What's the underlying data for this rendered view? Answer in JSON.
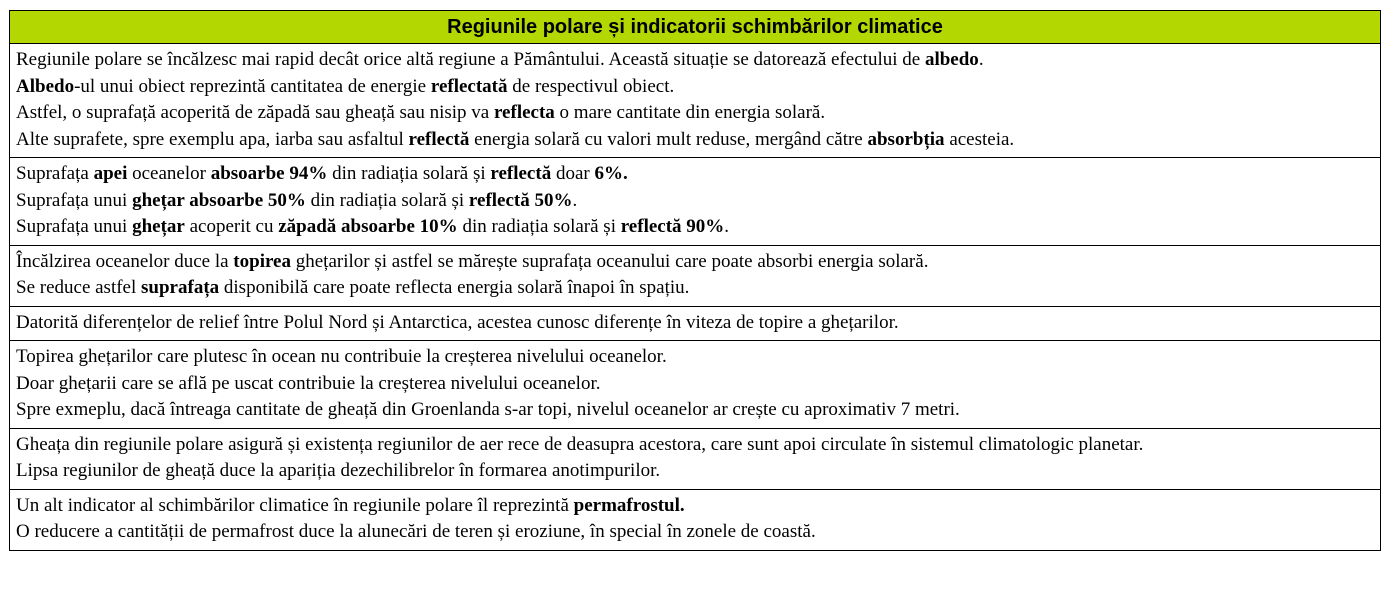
{
  "colors": {
    "header_background": "#b3d700",
    "border": "#000000",
    "text": "#000000"
  },
  "title": "Regiunile polare și indicatorii schimbărilor climatice",
  "rows": [
    {
      "lines": [
        [
          {
            "t": "Regiunile polare se încălzesc mai rapid decât orice altă regiune a Pământului. Această situație se datorează efectului de "
          },
          {
            "t": "albedo",
            "b": true
          },
          {
            "t": "."
          }
        ],
        [
          {
            "t": "Albedo",
            "b": true
          },
          {
            "t": "-ul unui obiect reprezintă cantitatea de energie "
          },
          {
            "t": "reflectată",
            "b": true
          },
          {
            "t": " de respectivul obiect."
          }
        ],
        [
          {
            "t": "Astfel, o suprafață acoperită de zăpadă sau gheață sau nisip va "
          },
          {
            "t": "reflecta",
            "b": true
          },
          {
            "t": " o mare cantitate din energia solară."
          }
        ],
        [
          {
            "t": "Alte suprafete, spre exemplu apa, iarba sau asfaltul "
          },
          {
            "t": "reflectă",
            "b": true
          },
          {
            "t": " energia solară cu valori mult reduse, mergând către "
          },
          {
            "t": "absorbția",
            "b": true
          },
          {
            "t": " acesteia."
          }
        ]
      ]
    },
    {
      "lines": [
        [
          {
            "t": "Suprafața "
          },
          {
            "t": "apei",
            "b": true
          },
          {
            "t": " oceanelor "
          },
          {
            "t": "absoarbe 94%",
            "b": true
          },
          {
            "t": " din radiația solară și "
          },
          {
            "t": "reflectă",
            "b": true
          },
          {
            "t": " doar "
          },
          {
            "t": "6%.",
            "b": true
          }
        ],
        [
          {
            "t": "Suprafața unui "
          },
          {
            "t": "ghețar absoarbe 50%",
            "b": true
          },
          {
            "t": " din radiația solară și "
          },
          {
            "t": "reflectă 50%",
            "b": true
          },
          {
            "t": "."
          }
        ],
        [
          {
            "t": "Suprafața unui "
          },
          {
            "t": "ghețar",
            "b": true
          },
          {
            "t": " acoperit cu "
          },
          {
            "t": "zăpadă absoarbe 10%",
            "b": true
          },
          {
            "t": " din radiația solară și "
          },
          {
            "t": "reflectă 90%",
            "b": true
          },
          {
            "t": "."
          }
        ]
      ]
    },
    {
      "lines": [
        [
          {
            "t": "Încălzirea oceanelor duce la "
          },
          {
            "t": "topirea",
            "b": true
          },
          {
            "t": " ghețarilor și astfel se mărește suprafața oceanului care poate absorbi energia solară."
          }
        ],
        [
          {
            "t": "Se reduce astfel "
          },
          {
            "t": "suprafața",
            "b": true
          },
          {
            "t": " disponibilă care poate reflecta energia solară înapoi în spațiu."
          }
        ]
      ]
    },
    {
      "lines": [
        [
          {
            "t": "Datorită diferențelor de relief între Polul Nord și Antarctica, acestea cunosc diferențe în viteza de topire a ghețarilor."
          }
        ]
      ]
    },
    {
      "lines": [
        [
          {
            "t": "Topirea ghețarilor care plutesc în ocean nu contribuie la creșterea nivelului oceanelor."
          }
        ],
        [
          {
            "t": "Doar ghețarii care se află pe uscat contribuie la creșterea nivelului oceanelor."
          }
        ],
        [
          {
            "t": "Spre exmeplu, dacă întreaga cantitate de gheață din Groenlanda s-ar topi, nivelul oceanelor ar crește cu aproximativ 7 metri."
          }
        ]
      ]
    },
    {
      "lines": [
        [
          {
            "t": "Gheața din regiunile polare asigură și existența regiunilor de aer rece de deasupra acestora, care sunt apoi circulate în sistemul climatologic planetar."
          }
        ],
        [
          {
            "t": "Lipsa regiunilor de gheață duce la apariția dezechilibrelor în formarea anotimpurilor."
          }
        ]
      ]
    },
    {
      "lines": [
        [
          {
            "t": "Un alt indicator al schimbărilor climatice în regiunile polare îl reprezintă "
          },
          {
            "t": "permafrostul.",
            "b": true
          }
        ],
        [
          {
            "t": "O reducere a cantității de permafrost duce la alunecări de teren și eroziune, în special în zonele de coastă."
          }
        ]
      ]
    }
  ]
}
